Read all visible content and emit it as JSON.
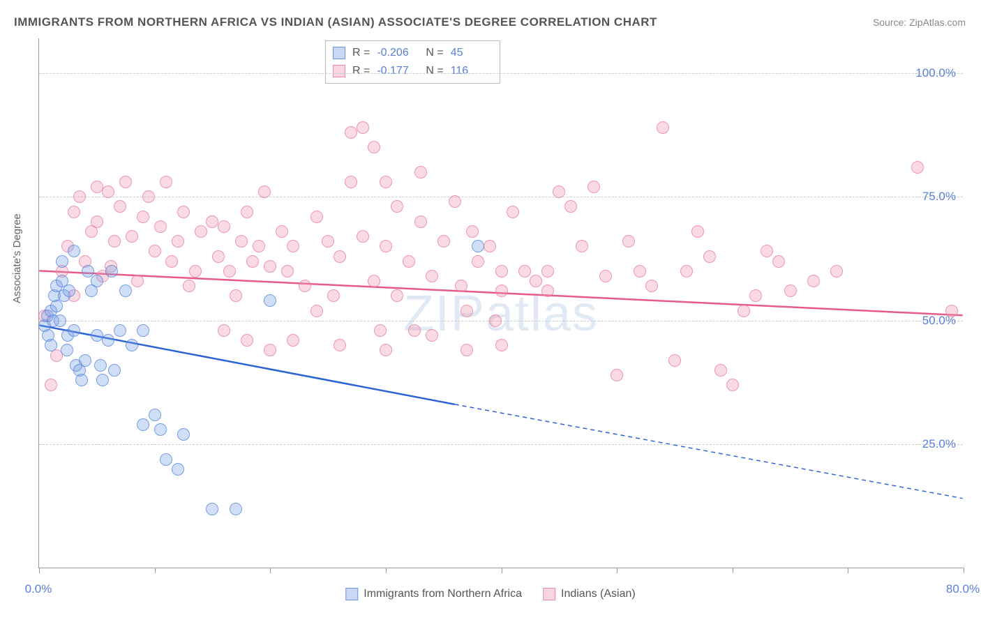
{
  "title": "IMMIGRANTS FROM NORTHERN AFRICA VS INDIAN (ASIAN) ASSOCIATE'S DEGREE CORRELATION CHART",
  "source": "Source: ZipAtlas.com",
  "watermark": "ZIPatlas",
  "chart": {
    "type": "scatter",
    "y_axis_label": "Associate's Degree",
    "xlim": [
      0,
      80
    ],
    "ylim": [
      0,
      107
    ],
    "x_ticks": [
      0,
      10,
      20,
      30,
      40,
      50,
      60,
      70,
      80
    ],
    "x_tick_labels": {
      "0": "0.0%",
      "80": "80.0%"
    },
    "y_gridlines": [
      25,
      50,
      75,
      100
    ],
    "y_tick_labels": {
      "25": "25.0%",
      "50": "50.0%",
      "75": "75.0%",
      "100": "100.0%"
    },
    "background_color": "#ffffff",
    "grid_color": "#cccccc",
    "axis_color": "#999999",
    "tick_label_color": "#5a7fd6",
    "tick_fontsize": 17,
    "axis_label_color": "#666666",
    "axis_label_fontsize": 15,
    "point_radius": 9,
    "series": {
      "blue": {
        "label": "Immigrants from Northern Africa",
        "fill_color": "rgba(120,160,230,0.35)",
        "stroke_color": "rgba(80,130,220,0.7)",
        "R": "-0.206",
        "N": "45",
        "trend": {
          "x1": 0,
          "y1": 49,
          "x2_solid": 36,
          "y2_solid": 33,
          "x2": 80,
          "y2": 14,
          "color": "#2b63d6",
          "width": 2.5
        },
        "points": [
          [
            0.5,
            49
          ],
          [
            0.7,
            51
          ],
          [
            0.8,
            47
          ],
          [
            1,
            45
          ],
          [
            1,
            52
          ],
          [
            1.2,
            50
          ],
          [
            1.3,
            55
          ],
          [
            1.5,
            57
          ],
          [
            1.5,
            53
          ],
          [
            1.8,
            50
          ],
          [
            2,
            62
          ],
          [
            2,
            58
          ],
          [
            2.2,
            55
          ],
          [
            2.4,
            44
          ],
          [
            2.5,
            47
          ],
          [
            2.6,
            56
          ],
          [
            3,
            64
          ],
          [
            3,
            48
          ],
          [
            3.2,
            41
          ],
          [
            3.5,
            40
          ],
          [
            3.7,
            38
          ],
          [
            4,
            42
          ],
          [
            4.2,
            60
          ],
          [
            4.5,
            56
          ],
          [
            5,
            58
          ],
          [
            5,
            47
          ],
          [
            5.3,
            41
          ],
          [
            5.5,
            38
          ],
          [
            6,
            46
          ],
          [
            6.3,
            60
          ],
          [
            6.5,
            40
          ],
          [
            7,
            48
          ],
          [
            7.5,
            56
          ],
          [
            8,
            45
          ],
          [
            9,
            29
          ],
          [
            10,
            31
          ],
          [
            10.5,
            28
          ],
          [
            11,
            22
          ],
          [
            12,
            20
          ],
          [
            12.5,
            27
          ],
          [
            15,
            12
          ],
          [
            17,
            12
          ],
          [
            9,
            48
          ],
          [
            20,
            54
          ],
          [
            38,
            65
          ]
        ]
      },
      "pink": {
        "label": "Indians (Asian)",
        "fill_color": "rgba(240,150,175,0.35)",
        "stroke_color": "rgba(230,120,155,0.7)",
        "R": "-0.177",
        "N": "116",
        "trend": {
          "x1": 0,
          "y1": 60,
          "x2": 80,
          "y2": 51,
          "color": "#e85a8a",
          "width": 2.5
        },
        "points": [
          [
            0.5,
            51
          ],
          [
            1,
            37
          ],
          [
            2,
            60
          ],
          [
            2.5,
            65
          ],
          [
            3,
            55
          ],
          [
            3.5,
            75
          ],
          [
            4,
            62
          ],
          [
            4.5,
            68
          ],
          [
            5,
            70
          ],
          [
            5.5,
            59
          ],
          [
            6,
            76
          ],
          [
            6.2,
            61
          ],
          [
            6.5,
            66
          ],
          [
            7,
            73
          ],
          [
            7.5,
            78
          ],
          [
            8,
            67
          ],
          [
            8.5,
            58
          ],
          [
            9,
            71
          ],
          [
            9.5,
            75
          ],
          [
            10,
            64
          ],
          [
            10.5,
            69
          ],
          [
            11,
            78
          ],
          [
            11.5,
            62
          ],
          [
            12,
            66
          ],
          [
            12.5,
            72
          ],
          [
            13,
            57
          ],
          [
            13.5,
            60
          ],
          [
            14,
            68
          ],
          [
            15,
            70
          ],
          [
            15.5,
            63
          ],
          [
            16,
            69
          ],
          [
            16.5,
            60
          ],
          [
            17,
            55
          ],
          [
            17.5,
            66
          ],
          [
            18,
            72
          ],
          [
            18.5,
            62
          ],
          [
            19,
            65
          ],
          [
            19.5,
            76
          ],
          [
            20,
            61
          ],
          [
            21,
            68
          ],
          [
            21.5,
            60
          ],
          [
            22,
            65
          ],
          [
            23,
            57
          ],
          [
            24,
            71
          ],
          [
            25,
            66
          ],
          [
            25.5,
            55
          ],
          [
            26,
            63
          ],
          [
            27,
            78
          ],
          [
            27,
            88
          ],
          [
            28,
            67
          ],
          [
            28,
            89
          ],
          [
            29,
            58
          ],
          [
            29,
            85
          ],
          [
            29.5,
            48
          ],
          [
            30,
            65
          ],
          [
            30,
            78
          ],
          [
            31,
            55
          ],
          [
            31,
            73
          ],
          [
            32,
            62
          ],
          [
            32.5,
            48
          ],
          [
            33,
            70
          ],
          [
            33,
            80
          ],
          [
            34,
            59
          ],
          [
            35,
            66
          ],
          [
            36,
            74
          ],
          [
            36.5,
            57
          ],
          [
            37,
            52
          ],
          [
            37.5,
            68
          ],
          [
            38,
            62
          ],
          [
            39,
            65
          ],
          [
            39.5,
            50
          ],
          [
            40,
            56
          ],
          [
            40,
            45
          ],
          [
            41,
            72
          ],
          [
            42,
            60
          ],
          [
            43,
            58
          ],
          [
            44,
            56
          ],
          [
            45,
            76
          ],
          [
            46,
            73
          ],
          [
            47,
            65
          ],
          [
            48,
            77
          ],
          [
            49,
            59
          ],
          [
            50,
            39
          ],
          [
            51,
            66
          ],
          [
            52,
            60
          ],
          [
            53,
            57
          ],
          [
            54,
            89
          ],
          [
            55,
            42
          ],
          [
            56,
            60
          ],
          [
            57,
            68
          ],
          [
            58,
            63
          ],
          [
            59,
            40
          ],
          [
            60,
            37
          ],
          [
            61,
            52
          ],
          [
            62,
            55
          ],
          [
            63,
            64
          ],
          [
            64,
            62
          ],
          [
            65,
            56
          ],
          [
            67,
            58
          ],
          [
            69,
            60
          ],
          [
            76,
            81
          ],
          [
            79,
            52
          ],
          [
            18,
            46
          ],
          [
            22,
            46
          ],
          [
            26,
            45
          ],
          [
            30,
            44
          ],
          [
            16,
            48
          ],
          [
            20,
            44
          ],
          [
            24,
            52
          ],
          [
            34,
            47
          ],
          [
            37,
            44
          ],
          [
            40,
            60
          ],
          [
            44,
            60
          ],
          [
            3,
            72
          ],
          [
            5,
            77
          ],
          [
            1.5,
            43
          ]
        ]
      }
    }
  },
  "stats_box": {
    "rows": [
      {
        "swatch": "blue",
        "R": "-0.206",
        "N": "45"
      },
      {
        "swatch": "pink",
        "R": "-0.177",
        "N": "116"
      }
    ]
  }
}
